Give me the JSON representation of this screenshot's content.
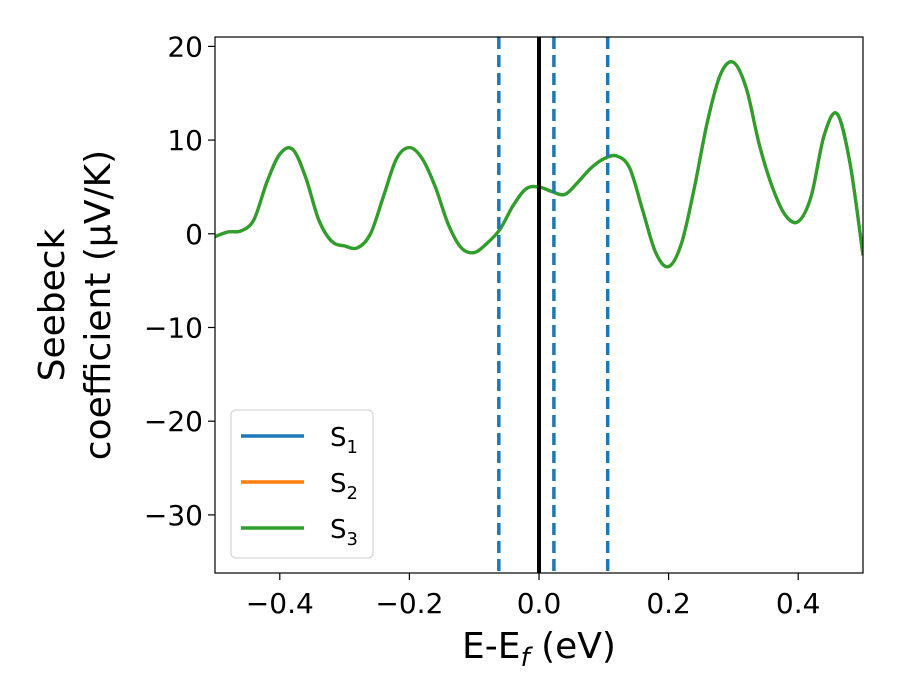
{
  "chart_data": {
    "type": "line",
    "xlabel": "E-E",
    "xlabel_sub": "f",
    "xlabel_unit": " (eV)",
    "ylabel_line1": "Seebeck",
    "ylabel_line2": "coefficient  (μV/K)",
    "xlim": [
      -0.5,
      0.5
    ],
    "ylim": [
      -36.2,
      21
    ],
    "xticks": [
      -0.4,
      -0.2,
      0.0,
      0.2,
      0.4
    ],
    "xtick_labels": [
      "−0.4",
      "−0.2",
      "0.0",
      "0.2",
      "0.4"
    ],
    "yticks": [
      20,
      10,
      0,
      -10,
      -20,
      -30
    ],
    "ytick_labels": [
      "20",
      "10",
      "0",
      "−10",
      "−20",
      "−30"
    ],
    "grid": false,
    "legend_position": "lower-left",
    "vlines": [
      {
        "x": -0.062,
        "style": "dashed",
        "color": "#1f77b4"
      },
      {
        "x": 0.0,
        "style": "solid",
        "color": "#000000"
      },
      {
        "x": 0.023,
        "style": "dashed",
        "color": "#1f77b4"
      },
      {
        "x": 0.106,
        "style": "dashed",
        "color": "#1f77b4"
      }
    ],
    "x": [
      -0.5,
      -0.48,
      -0.46,
      -0.44,
      -0.42,
      -0.4,
      -0.38,
      -0.36,
      -0.34,
      -0.32,
      -0.3,
      -0.28,
      -0.26,
      -0.24,
      -0.22,
      -0.2,
      -0.18,
      -0.16,
      -0.14,
      -0.12,
      -0.1,
      -0.08,
      -0.06,
      -0.04,
      -0.02,
      0.0,
      0.02,
      0.04,
      0.06,
      0.08,
      0.1,
      0.12,
      0.14,
      0.16,
      0.18,
      0.2,
      0.22,
      0.24,
      0.26,
      0.28,
      0.3,
      0.32,
      0.34,
      0.36,
      0.38,
      0.4,
      0.42,
      0.44,
      0.46,
      0.48,
      0.5
    ],
    "series": [
      {
        "name_base": "S",
        "name_sub": "1",
        "color": "#1f77b4",
        "values": [
          -0.3,
          0.2,
          0.3,
          1.5,
          5.5,
          8.5,
          9.0,
          6.0,
          1.5,
          -0.8,
          -1.3,
          -1.5,
          0.0,
          4.0,
          8.0,
          9.2,
          8.0,
          5.0,
          1.0,
          -1.5,
          -2.0,
          -1.0,
          0.5,
          3.0,
          4.8,
          5.0,
          4.5,
          4.2,
          5.5,
          7.0,
          8.0,
          8.3,
          7.0,
          2.5,
          -2.0,
          -3.5,
          -1.0,
          5.0,
          12.0,
          17.0,
          18.3,
          15.5,
          9.5,
          5.0,
          2.0,
          1.3,
          4.0,
          10.5,
          12.8,
          7.5,
          -2.3
        ]
      },
      {
        "name_base": "S",
        "name_sub": "2",
        "color": "#ff7f0e",
        "values": [
          -0.3,
          0.2,
          0.3,
          1.5,
          5.5,
          8.5,
          9.0,
          6.0,
          1.5,
          -0.8,
          -1.3,
          -1.5,
          0.0,
          4.0,
          8.0,
          9.2,
          8.0,
          5.0,
          1.0,
          -1.5,
          -2.0,
          -1.0,
          0.5,
          3.0,
          4.8,
          5.0,
          4.5,
          4.2,
          5.5,
          7.0,
          8.0,
          8.3,
          7.0,
          2.5,
          -2.0,
          -3.5,
          -1.0,
          5.0,
          12.0,
          17.0,
          18.3,
          15.5,
          9.5,
          5.0,
          2.0,
          1.3,
          4.0,
          10.5,
          12.8,
          7.5,
          -2.3
        ]
      },
      {
        "name_base": "S",
        "name_sub": "3",
        "color": "#2ca02c",
        "values": [
          -0.3,
          0.2,
          0.3,
          1.5,
          5.5,
          8.5,
          9.0,
          6.0,
          1.5,
          -0.8,
          -1.3,
          -1.5,
          0.0,
          4.0,
          8.0,
          9.2,
          8.0,
          5.0,
          1.0,
          -1.5,
          -2.0,
          -1.0,
          0.5,
          3.0,
          4.8,
          5.0,
          4.5,
          4.2,
          5.5,
          7.0,
          8.0,
          8.3,
          7.0,
          2.5,
          -2.0,
          -3.5,
          -1.0,
          5.0,
          12.0,
          17.0,
          18.3,
          15.5,
          9.5,
          5.0,
          2.0,
          1.3,
          4.0,
          10.5,
          12.8,
          7.5,
          -2.3
        ]
      }
    ]
  }
}
